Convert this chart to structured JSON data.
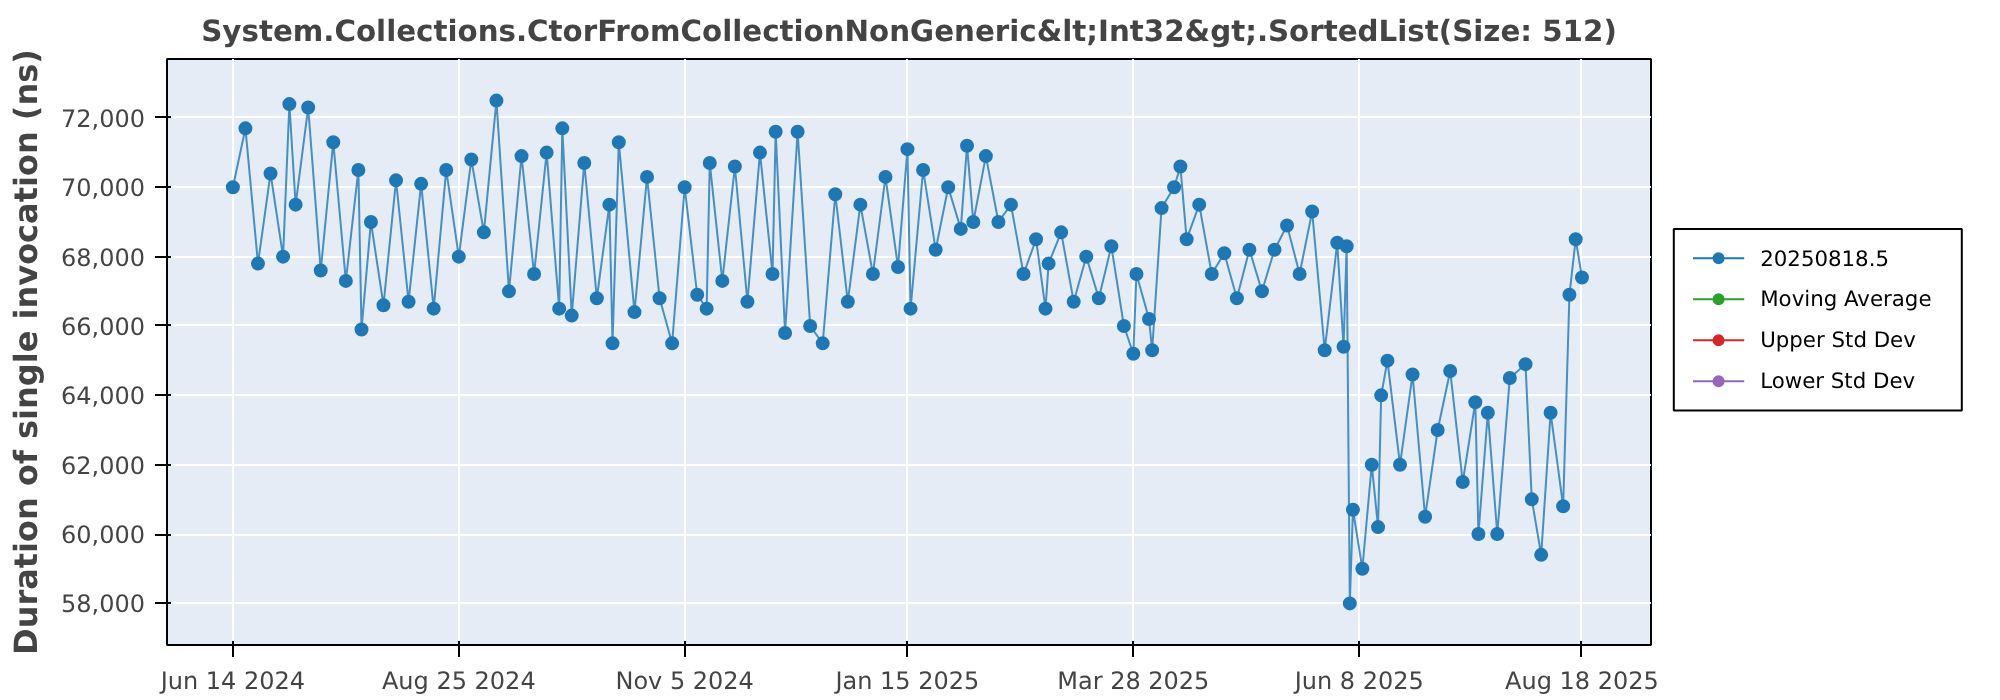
{
  "chart_data": {
    "type": "line",
    "title": "System.Collections.CtorFromCollectionNonGeneric&lt;Int32&gt;.SortedList(Size: 512)",
    "ylabel": "Duration of single invocation (ns)",
    "xlim": [
      "2024-05-24",
      "2025-09-09"
    ],
    "ylim": [
      56800,
      73700
    ],
    "xticks": [
      {
        "value": "2024-06-14",
        "label": "Jun 14 2024"
      },
      {
        "value": "2024-08-25",
        "label": "Aug 25 2024"
      },
      {
        "value": "2024-11-05",
        "label": "Nov 5 2024"
      },
      {
        "value": "2025-01-15",
        "label": "Jan 15 2025"
      },
      {
        "value": "2025-03-28",
        "label": "Mar 28 2025"
      },
      {
        "value": "2025-06-08",
        "label": "Jun 8 2025"
      },
      {
        "value": "2025-08-18",
        "label": "Aug 18 2025"
      }
    ],
    "yticks": [
      {
        "value": 58000,
        "label": "58,000"
      },
      {
        "value": 60000,
        "label": "60,000"
      },
      {
        "value": 62000,
        "label": "62,000"
      },
      {
        "value": 64000,
        "label": "64,000"
      },
      {
        "value": 66000,
        "label": "66,000"
      },
      {
        "value": 68000,
        "label": "68,000"
      },
      {
        "value": 70000,
        "label": "70,000"
      },
      {
        "value": 72000,
        "label": "72,000"
      }
    ],
    "grid": true,
    "legend": "right",
    "marker": "circle",
    "line_style": "solid",
    "series": [
      {
        "name": "20250818.5",
        "color": "#1f77b4",
        "x": [
          "2024-06-14",
          "2024-06-18",
          "2024-06-22",
          "2024-06-26",
          "2024-06-30",
          "2024-07-02",
          "2024-07-04",
          "2024-07-08",
          "2024-07-12",
          "2024-07-16",
          "2024-07-20",
          "2024-07-24",
          "2024-07-25",
          "2024-07-28",
          "2024-08-01",
          "2024-08-05",
          "2024-08-09",
          "2024-08-13",
          "2024-08-17",
          "2024-08-21",
          "2024-08-25",
          "2024-08-29",
          "2024-09-02",
          "2024-09-06",
          "2024-09-10",
          "2024-09-14",
          "2024-09-18",
          "2024-09-22",
          "2024-09-26",
          "2024-09-27",
          "2024-09-30",
          "2024-10-04",
          "2024-10-08",
          "2024-10-12",
          "2024-10-13",
          "2024-10-15",
          "2024-10-20",
          "2024-10-24",
          "2024-10-28",
          "2024-11-01",
          "2024-11-05",
          "2024-11-09",
          "2024-11-12",
          "2024-11-13",
          "2024-11-17",
          "2024-11-21",
          "2024-11-25",
          "2024-11-29",
          "2024-12-03",
          "2024-12-04",
          "2024-12-07",
          "2024-12-11",
          "2024-12-15",
          "2024-12-19",
          "2024-12-23",
          "2024-12-27",
          "2024-12-31",
          "2025-01-04",
          "2025-01-08",
          "2025-01-12",
          "2025-01-15",
          "2025-01-16",
          "2025-01-20",
          "2025-01-24",
          "2025-01-28",
          "2025-02-01",
          "2025-02-03",
          "2025-02-05",
          "2025-02-09",
          "2025-02-13",
          "2025-02-17",
          "2025-02-21",
          "2025-02-25",
          "2025-02-28",
          "2025-03-01",
          "2025-03-05",
          "2025-03-09",
          "2025-03-13",
          "2025-03-17",
          "2025-03-21",
          "2025-03-25",
          "2025-03-28",
          "2025-03-29",
          "2025-04-02",
          "2025-04-03",
          "2025-04-06",
          "2025-04-10",
          "2025-04-12",
          "2025-04-14",
          "2025-04-18",
          "2025-04-22",
          "2025-04-26",
          "2025-04-30",
          "2025-05-04",
          "2025-05-08",
          "2025-05-12",
          "2025-05-16",
          "2025-05-20",
          "2025-05-24",
          "2025-05-28",
          "2025-06-01",
          "2025-06-03",
          "2025-06-04",
          "2025-06-05",
          "2025-06-06",
          "2025-06-09",
          "2025-06-12",
          "2025-06-14",
          "2025-06-15",
          "2025-06-17",
          "2025-06-21",
          "2025-06-25",
          "2025-06-29",
          "2025-07-03",
          "2025-07-07",
          "2025-07-11",
          "2025-07-15",
          "2025-07-16",
          "2025-07-19",
          "2025-07-22",
          "2025-07-26",
          "2025-07-31",
          "2025-08-02",
          "2025-08-05",
          "2025-08-08",
          "2025-08-12",
          "2025-08-14",
          "2025-08-16",
          "2025-08-18"
        ],
        "values": [
          70000,
          71700,
          67800,
          70400,
          68000,
          72400,
          69500,
          72300,
          67600,
          71300,
          67300,
          70500,
          65900,
          69000,
          66600,
          70200,
          66700,
          70100,
          66500,
          70500,
          68000,
          70800,
          68700,
          72500,
          67000,
          70900,
          67500,
          71000,
          66500,
          71700,
          66300,
          70700,
          66800,
          69500,
          65500,
          71300,
          66400,
          70300,
          66800,
          65500,
          70000,
          66900,
          66500,
          70700,
          67300,
          70600,
          66700,
          71000,
          67500,
          71600,
          65800,
          71600,
          66000,
          65500,
          69800,
          66700,
          69500,
          67500,
          70300,
          67700,
          71100,
          66500,
          70500,
          68200,
          70000,
          68800,
          71200,
          69000,
          70900,
          69000,
          69500,
          67500,
          68500,
          66500,
          67800,
          68700,
          66700,
          68000,
          66800,
          68300,
          66000,
          65200,
          67500,
          66200,
          65300,
          69400,
          70000,
          70600,
          68500,
          69500,
          67500,
          68100,
          66800,
          68200,
          67000,
          68200,
          68900,
          67500,
          69300,
          65300,
          68400,
          65400,
          68300,
          58000,
          60700,
          59000,
          62000,
          60200,
          64000,
          65000,
          62000,
          64600,
          60500,
          63000,
          64700,
          61500,
          63800,
          60000,
          63500,
          60000,
          64500,
          64900,
          61000,
          59400,
          63500,
          60800,
          66900,
          68500,
          67400
        ]
      },
      {
        "name": "Moving Average",
        "color": "#2ca02c"
      },
      {
        "name": "Upper Std Dev",
        "color": "#d62728"
      },
      {
        "name": "Lower Std Dev",
        "color": "#9467bd"
      }
    ]
  }
}
